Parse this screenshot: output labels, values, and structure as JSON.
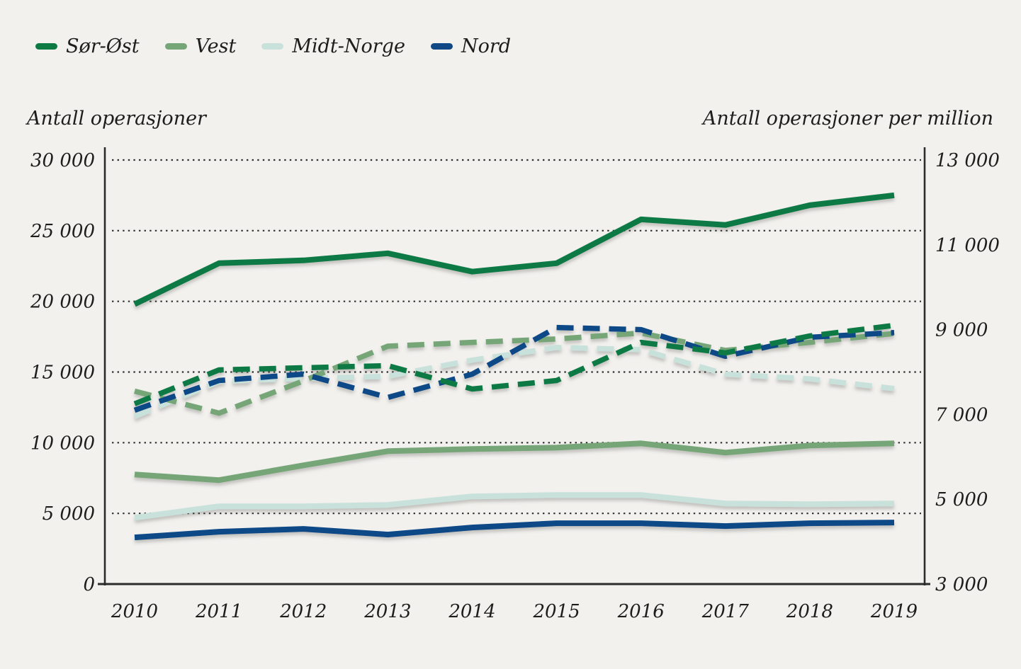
{
  "legend": {
    "items": [
      {
        "label": "Sør-Øst",
        "slug": "sor-ost",
        "color": "#0d7a44"
      },
      {
        "label": "Vest",
        "slug": "vest",
        "color": "#76a678"
      },
      {
        "label": "Midt-Norge",
        "slug": "midt-norge",
        "color": "#c9e1db"
      },
      {
        "label": "Nord",
        "slug": "nord",
        "color": "#104886"
      }
    ]
  },
  "axes": {
    "left_title": "Antall operasjoner",
    "right_title": "Antall operasjoner per million"
  },
  "chart_data": {
    "type": "line",
    "x_labels": [
      "2010",
      "2011",
      "2012",
      "2013",
      "2014",
      "2015",
      "2016",
      "2017",
      "2018",
      "2019"
    ],
    "left_axis": {
      "title": "Antall operasjoner",
      "min": 0,
      "max": 30000,
      "ticks": [
        {
          "value": 30000,
          "label": "30 000"
        },
        {
          "value": 25000,
          "label": "25 000"
        },
        {
          "value": 20000,
          "label": "20 000"
        },
        {
          "value": 15000,
          "label": "15 000"
        },
        {
          "value": 10000,
          "label": "10 000"
        },
        {
          "value": 5000,
          "label": "5 000"
        },
        {
          "value": 0,
          "label": "0"
        }
      ]
    },
    "right_axis": {
      "title": "Antall operasjoner per million",
      "min": 3000,
      "max": 13000,
      "ticks": [
        {
          "value": 13000,
          "label": "13 000"
        },
        {
          "value": 11000,
          "label": "11 000"
        },
        {
          "value": 9000,
          "label": "9 000"
        },
        {
          "value": 7000,
          "label": "7 000"
        },
        {
          "value": 5000,
          "label": "5 000"
        },
        {
          "value": 3000,
          "label": "3 000"
        }
      ]
    },
    "grid": "dotted-horizontal",
    "legend_position": "top-left",
    "series": [
      {
        "name": "Sør-Øst",
        "slug": "sor-ost",
        "axis": "left",
        "line": "solid",
        "color": "#0d7a44",
        "values": [
          19800,
          22700,
          22900,
          23400,
          22100,
          22700,
          25800,
          25400,
          26800,
          27500
        ]
      },
      {
        "name": "Vest",
        "slug": "vest",
        "axis": "left",
        "line": "solid",
        "color": "#76a678",
        "values": [
          7750,
          7350,
          8400,
          9400,
          9550,
          9650,
          9950,
          9300,
          9800,
          9950
        ]
      },
      {
        "name": "Midt-Norge",
        "slug": "midt-norge",
        "axis": "left",
        "line": "solid",
        "color": "#c9e1db",
        "values": [
          4700,
          5500,
          5500,
          5600,
          6200,
          6300,
          6300,
          5700,
          5650,
          5700
        ]
      },
      {
        "name": "Nord",
        "slug": "nord",
        "axis": "left",
        "line": "solid",
        "color": "#104886",
        "values": [
          3300,
          3700,
          3900,
          3500,
          4000,
          4300,
          4300,
          4100,
          4300,
          4350
        ]
      },
      {
        "name": "Midt-Norge",
        "slug": "midt-norge",
        "axis": "right",
        "line": "dashed",
        "color": "#c9e1db",
        "values": [
          6950,
          7780,
          7850,
          7900,
          8280,
          8580,
          8530,
          7950,
          7840,
          7610
        ]
      },
      {
        "name": "Vest",
        "slug": "vest",
        "axis": "right",
        "line": "dashed",
        "color": "#76a678",
        "values": [
          7550,
          7030,
          7790,
          8610,
          8700,
          8780,
          8920,
          8510,
          8700,
          8910
        ]
      },
      {
        "name": "Nord",
        "slug": "nord",
        "axis": "right",
        "line": "dashed",
        "color": "#104886",
        "values": [
          7100,
          7800,
          7950,
          7400,
          7950,
          9050,
          9000,
          8370,
          8820,
          8930
        ]
      },
      {
        "name": "Sør-Øst",
        "slug": "sor-ost",
        "axis": "right",
        "line": "dashed",
        "color": "#0d7a44",
        "values": [
          7250,
          8050,
          8100,
          8150,
          7600,
          7800,
          8700,
          8450,
          8850,
          9100
        ]
      }
    ]
  }
}
